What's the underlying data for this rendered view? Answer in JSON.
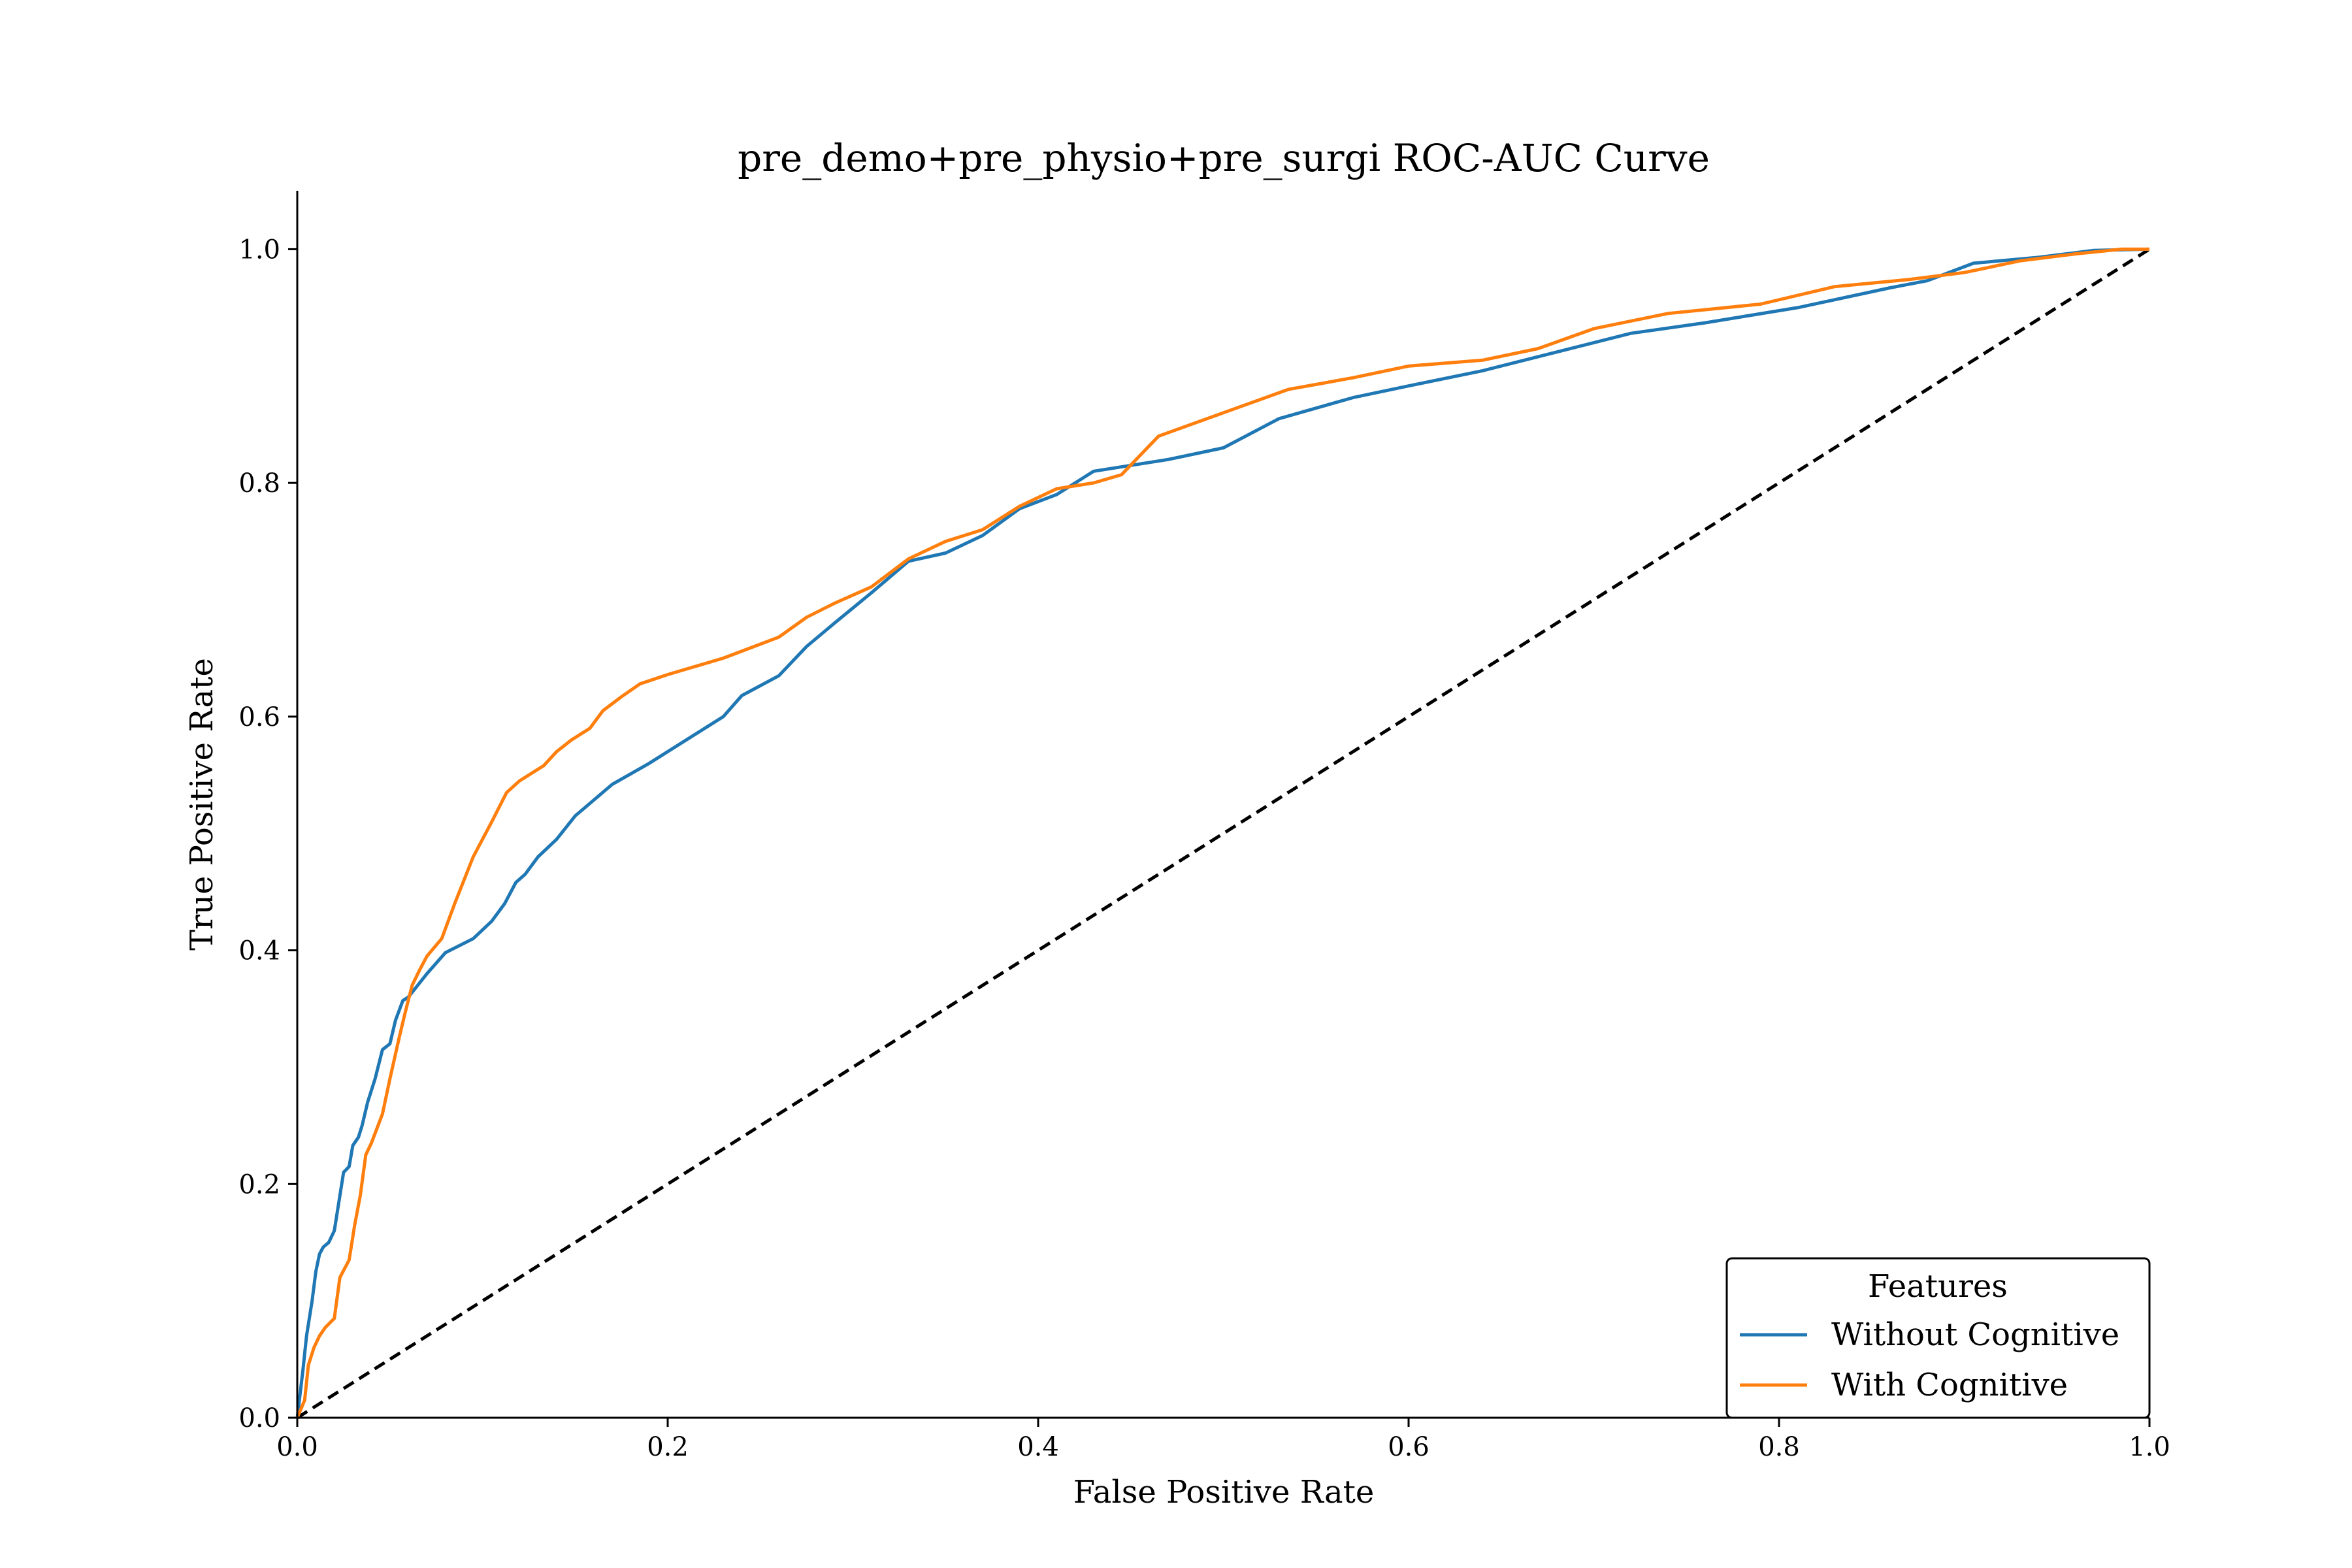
{
  "chart_data": {
    "type": "line",
    "title": "pre_demo+pre_physio+pre_surgi ROC-AUC Curve",
    "xlabel": "False Positive Rate",
    "ylabel": "True Positive Rate",
    "xlim": [
      0,
      1
    ],
    "ylim": [
      0,
      1.05
    ],
    "grid": false,
    "legend": {
      "title": "Features",
      "placement": "lower-right"
    },
    "x_ticks": [
      "0.0",
      "0.2",
      "0.4",
      "0.6",
      "0.8",
      "1.0"
    ],
    "y_ticks": [
      "0.0",
      "0.2",
      "0.4",
      "0.6",
      "0.8",
      "1.0"
    ],
    "series": [
      {
        "name": "Without Cognitive",
        "color": "#1f77b4",
        "x": [
          0,
          0.003,
          0.005,
          0.008,
          0.01,
          0.012,
          0.014,
          0.017,
          0.02,
          0.025,
          0.028,
          0.03,
          0.033,
          0.035,
          0.038,
          0.042,
          0.046,
          0.05,
          0.053,
          0.057,
          0.06,
          0.065,
          0.07,
          0.08,
          0.095,
          0.105,
          0.112,
          0.118,
          0.123,
          0.13,
          0.14,
          0.15,
          0.17,
          0.19,
          0.21,
          0.22,
          0.23,
          0.24,
          0.26,
          0.275,
          0.29,
          0.31,
          0.33,
          0.35,
          0.37,
          0.39,
          0.41,
          0.43,
          0.45,
          0.47,
          0.5,
          0.53,
          0.57,
          0.6,
          0.64,
          0.68,
          0.72,
          0.76,
          0.81,
          0.86,
          0.88,
          0.905,
          0.94,
          0.97,
          1.0
        ],
        "y": [
          0,
          0.04,
          0.07,
          0.1,
          0.125,
          0.14,
          0.146,
          0.15,
          0.16,
          0.21,
          0.215,
          0.233,
          0.24,
          0.25,
          0.27,
          0.29,
          0.315,
          0.32,
          0.34,
          0.357,
          0.36,
          0.37,
          0.38,
          0.398,
          0.41,
          0.425,
          0.44,
          0.458,
          0.465,
          0.48,
          0.495,
          0.515,
          0.542,
          0.56,
          0.58,
          0.59,
          0.6,
          0.618,
          0.635,
          0.66,
          0.68,
          0.706,
          0.733,
          0.74,
          0.755,
          0.778,
          0.79,
          0.81,
          0.815,
          0.82,
          0.83,
          0.855,
          0.873,
          0.883,
          0.896,
          0.912,
          0.928,
          0.937,
          0.95,
          0.967,
          0.973,
          0.988,
          0.993,
          0.999,
          1.0
        ]
      },
      {
        "name": "With Cognitive",
        "color": "#ff7f0e",
        "x": [
          0,
          0.004,
          0.006,
          0.009,
          0.012,
          0.015,
          0.02,
          0.023,
          0.028,
          0.031,
          0.034,
          0.037,
          0.04,
          0.046,
          0.05,
          0.055,
          0.058,
          0.062,
          0.066,
          0.07,
          0.078,
          0.085,
          0.095,
          0.105,
          0.113,
          0.12,
          0.125,
          0.133,
          0.14,
          0.148,
          0.158,
          0.165,
          0.175,
          0.185,
          0.2,
          0.23,
          0.26,
          0.275,
          0.29,
          0.31,
          0.33,
          0.35,
          0.37,
          0.39,
          0.41,
          0.43,
          0.445,
          0.465,
          0.5,
          0.535,
          0.57,
          0.6,
          0.64,
          0.67,
          0.7,
          0.74,
          0.79,
          0.83,
          0.87,
          0.9,
          0.93,
          0.96,
          0.985,
          1.0
        ],
        "y": [
          0,
          0.015,
          0.045,
          0.06,
          0.07,
          0.077,
          0.085,
          0.12,
          0.135,
          0.165,
          0.19,
          0.225,
          0.235,
          0.26,
          0.29,
          0.325,
          0.345,
          0.37,
          0.383,
          0.395,
          0.41,
          0.44,
          0.48,
          0.51,
          0.535,
          0.545,
          0.55,
          0.558,
          0.57,
          0.58,
          0.59,
          0.605,
          0.617,
          0.628,
          0.636,
          0.65,
          0.668,
          0.685,
          0.697,
          0.711,
          0.735,
          0.75,
          0.76,
          0.78,
          0.795,
          0.8,
          0.807,
          0.84,
          0.86,
          0.88,
          0.89,
          0.9,
          0.905,
          0.915,
          0.932,
          0.945,
          0.953,
          0.968,
          0.974,
          0.98,
          0.99,
          0.996,
          1.0,
          1.0
        ]
      },
      {
        "name": "",
        "role": "chance-diagonal",
        "color": "#000000",
        "dashed": true,
        "x": [
          0,
          1
        ],
        "y": [
          0,
          1
        ]
      }
    ]
  }
}
